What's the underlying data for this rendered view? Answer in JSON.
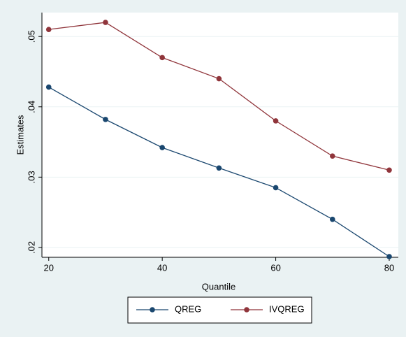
{
  "chart_data": {
    "type": "line",
    "xlabel": "Quantile",
    "ylabel": "Estimates",
    "x": [
      20,
      30,
      40,
      50,
      60,
      70,
      80
    ],
    "series": [
      {
        "name": "QREG",
        "color": "#1a476f",
        "values": [
          0.0428,
          0.0382,
          0.0342,
          0.0313,
          0.0285,
          0.024,
          0.0187
        ]
      },
      {
        "name": "IVQREG",
        "color": "#90353b",
        "values": [
          0.051,
          0.052,
          0.047,
          0.044,
          0.038,
          0.033,
          0.031
        ]
      }
    ],
    "xlim": [
      18.8,
      81.6
    ],
    "ylim": [
      0.0186,
      0.0534
    ],
    "xticks": [
      20,
      40,
      60,
      80
    ],
    "yticks": [
      {
        "value": 0.02,
        "label": ".02"
      },
      {
        "value": 0.03,
        "label": ".03"
      },
      {
        "value": 0.04,
        "label": ".04"
      },
      {
        "value": 0.05,
        "label": ".05"
      }
    ],
    "grid": true,
    "legend": "bottom"
  }
}
